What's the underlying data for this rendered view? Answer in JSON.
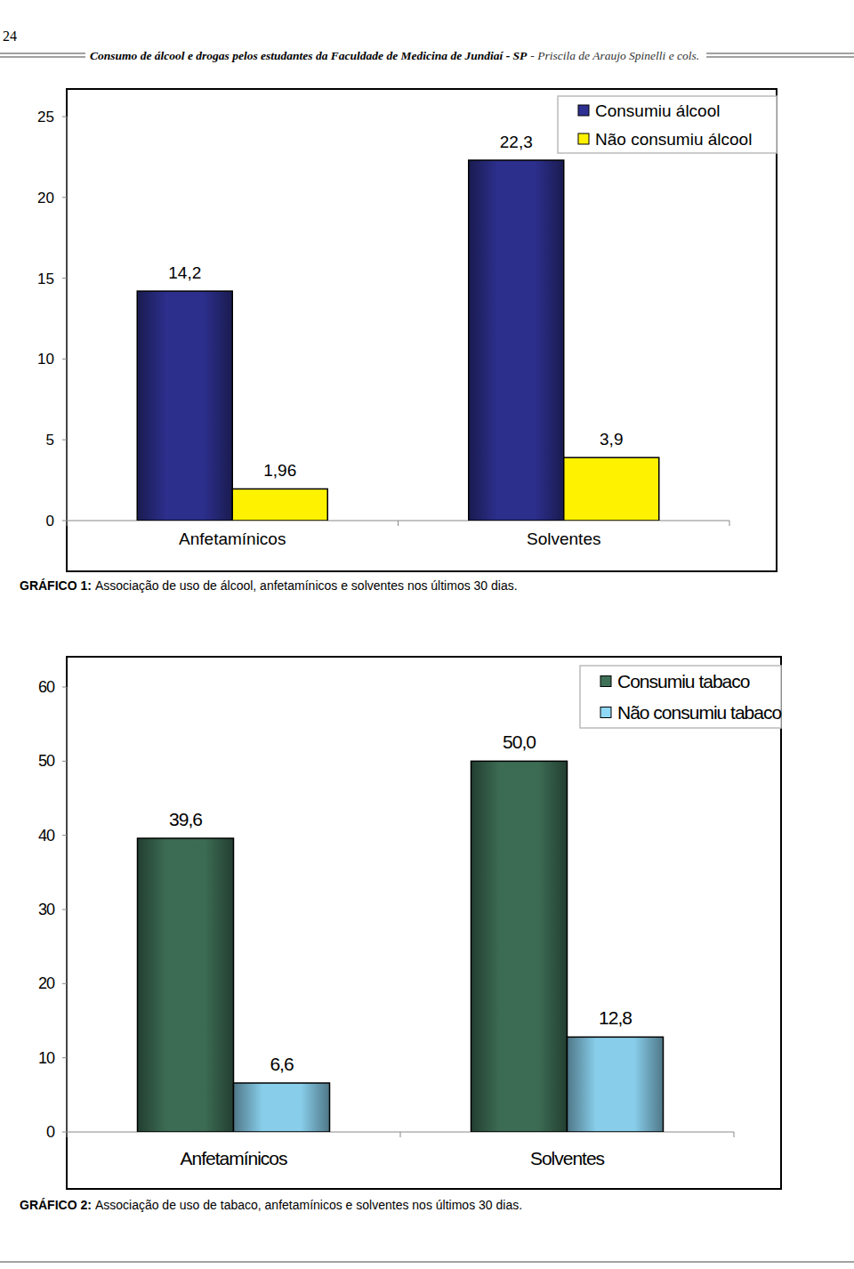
{
  "header": {
    "page_number": "24",
    "title": "Consumo de álcool e drogas pelos estudantes da Faculdade de Medicina de Jundiaí - SP",
    "authors": "- Priscila de Araujo Spinelli e cols."
  },
  "chart_data": [
    {
      "type": "bar",
      "title": "GRÁFICO 1:",
      "subtitle": "Associação de uso de álcool, anfetamínicos e solventes nos últimos 30 dias.",
      "categories": [
        "Anfetamínicos",
        "Solventes"
      ],
      "series": [
        {
          "name": "Consumiu álcool",
          "color": "#2e3192",
          "values": [
            14.2,
            22.3
          ],
          "value_labels": [
            "14,2",
            "22,3"
          ]
        },
        {
          "name": "Não consumiu álcool",
          "color": "#fff200",
          "values": [
            1.96,
            3.9
          ],
          "value_labels": [
            "1,96",
            "3,9"
          ]
        }
      ],
      "ylim": [
        0,
        25
      ],
      "yticks": [
        0,
        5,
        10,
        15,
        20,
        25
      ],
      "grid": false,
      "legend": "top-right",
      "data_labels": true
    },
    {
      "type": "bar",
      "title": "GRÁFICO 2:",
      "subtitle": "Associação de uso de tabaco, anfetamínicos e solventes nos últimos 30 dias.",
      "categories": [
        "Anfetamínicos",
        "Solventes"
      ],
      "series": [
        {
          "name": "Consumiu tabaco",
          "color": "#3f7158",
          "values": [
            39.6,
            50.0
          ],
          "value_labels": [
            "39,6",
            "50,0"
          ]
        },
        {
          "name": "Não consumiu tabaco",
          "color": "#8fd8f6",
          "values": [
            6.6,
            12.8
          ],
          "value_labels": [
            "6,6",
            "12,8"
          ]
        }
      ],
      "ylim": [
        0,
        60
      ],
      "yticks": [
        0,
        10,
        20,
        30,
        40,
        50,
        60
      ],
      "grid": false,
      "legend": "top-right",
      "data_labels": true
    }
  ]
}
